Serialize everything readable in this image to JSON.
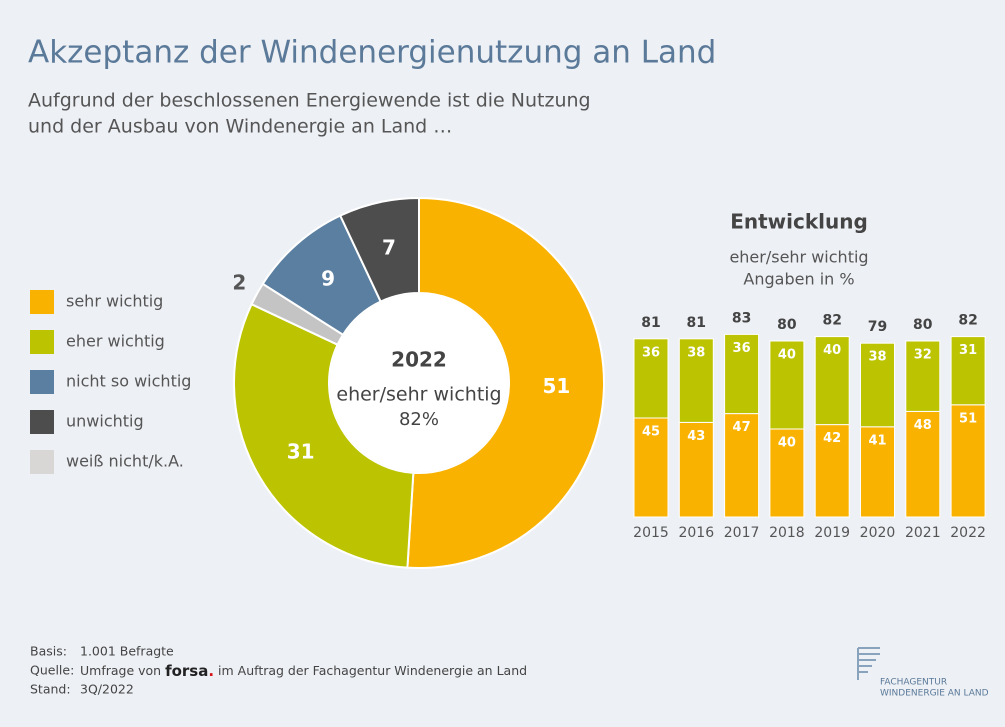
{
  "title": "Akzeptanz der Windenergienutzung an Land",
  "subtitle_lines": [
    "Aufgrund der beschlossenen Energiewende ist die Nutzung",
    "und der Ausbau von Windenergie an Land …"
  ],
  "legend": [
    {
      "name": "sehr wichtig",
      "color": "#f9b200"
    },
    {
      "name": "eher wichtig",
      "color": "#bcc300"
    },
    {
      "name": "nicht so wichtig",
      "color": "#5b7fa0"
    },
    {
      "name": "unwichtig",
      "color": "#4d4d4d"
    },
    {
      "name": "weiß nicht/k.A.",
      "color": "#d9d7d6"
    }
  ],
  "chart_data": [
    {
      "type": "pie",
      "donut": true,
      "values": [
        51,
        31,
        2,
        9,
        7
      ],
      "colors": [
        "#f9b200",
        "#bcc300",
        "#c4c4c4",
        "#5b7fa0",
        "#4d4d4d"
      ],
      "center_title": "2022",
      "center_label": "eher/sehr wichtig",
      "center_value": {
        "value": 82,
        "label": "82%"
      }
    },
    {
      "type": "bar",
      "stacked": true,
      "title": "Entwicklung",
      "subtitle_lines": [
        "eher/sehr wichtig",
        "Angaben in %"
      ],
      "categories": [
        "2015",
        "2016",
        "2017",
        "2018",
        "2019",
        "2020",
        "2021",
        "2022"
      ],
      "series": [
        {
          "color": "#f9b200",
          "values": [
            45,
            43,
            47,
            40,
            42,
            41,
            48,
            51
          ]
        },
        {
          "color": "#bcc300",
          "values": [
            36,
            38,
            36,
            40,
            40,
            38,
            32,
            31
          ]
        }
      ],
      "totals": [
        81,
        81,
        83,
        80,
        82,
        79,
        80,
        82
      ]
    }
  ],
  "footer": {
    "basis_label": "Basis:",
    "basis": "1.001 Befragte",
    "quelle_label": "Quelle:",
    "quelle_pre": "Umfrage von",
    "quelle_brand": "forsa",
    "quelle_dot": ".",
    "quelle_post": "im Auftrag der Fachagentur Windenergie an Land",
    "stand_label": "Stand:",
    "stand": "3Q/2022"
  },
  "logo": [
    "FACHAGENTUR",
    "WINDENERGIE AN LAND"
  ]
}
